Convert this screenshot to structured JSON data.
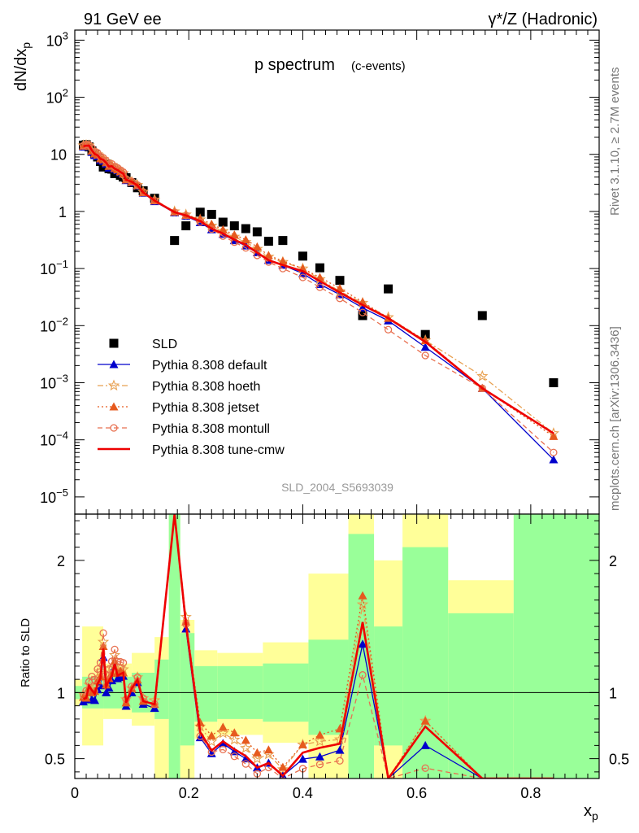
{
  "header": {
    "left": "91 GeV ee",
    "right": "γ*/Z (Hadronic)"
  },
  "side": {
    "rivet": "Rivet 3.1.10, ≥ 2.7M events",
    "mcplots": "mcplots.cern.ch [arXiv:1306.3436]"
  },
  "colors": {
    "sld": "#000000",
    "default": "#0000cc",
    "hoeth": "#e8a050",
    "jetset": "#e65a1e",
    "montull": "#e87050",
    "tunecmw": "#ee0000",
    "band_green": "#99ff99",
    "band_yellow": "#ffff99"
  },
  "chart_data": [
    {
      "type": "scatter",
      "title": "p spectrum",
      "subtitle": "(c-events)",
      "watermark": "SLD_2004_S5693039",
      "ylabel": "dN/dx_p",
      "yscale": "log",
      "ylim": [
        5e-06,
        1500
      ],
      "xlim": [
        0,
        0.92
      ],
      "yticks": [
        {
          "v": 1e-05,
          "b": "10",
          "e": "−5"
        },
        {
          "v": 0.0001,
          "b": "10",
          "e": "−4"
        },
        {
          "v": 0.001,
          "b": "10",
          "e": "−3"
        },
        {
          "v": 0.01,
          "b": "10",
          "e": "−2"
        },
        {
          "v": 0.1,
          "b": "10",
          "e": "−1"
        },
        {
          "v": 1,
          "b": "1",
          "e": ""
        },
        {
          "v": 10,
          "b": "10",
          "e": ""
        },
        {
          "v": 100,
          "b": "10",
          "e": "2"
        },
        {
          "v": 1000,
          "b": "10",
          "e": "3"
        }
      ],
      "legend": {
        "position": "bottom-left"
      },
      "x": [
        0.015,
        0.02,
        0.025,
        0.03,
        0.035,
        0.04,
        0.045,
        0.05,
        0.055,
        0.06,
        0.065,
        0.07,
        0.075,
        0.08,
        0.085,
        0.09,
        0.1,
        0.11,
        0.12,
        0.14,
        0.175,
        0.195,
        0.22,
        0.24,
        0.26,
        0.28,
        0.3,
        0.32,
        0.34,
        0.365,
        0.4,
        0.43,
        0.465,
        0.505,
        0.55,
        0.615,
        0.715,
        0.84
      ],
      "series": [
        {
          "name": "SLD",
          "key": "sld",
          "marker": "square",
          "line": "none",
          "values": [
            14.5,
            14.8,
            13.5,
            11.5,
            10.2,
            9.0,
            7.5,
            6.0,
            6.8,
            5.6,
            5.5,
            4.6,
            4.7,
            4.3,
            4.0,
            3.9,
            3.2,
            2.6,
            2.3,
            1.7,
            0.31,
            0.56,
            0.97,
            0.89,
            0.65,
            0.56,
            0.5,
            0.44,
            0.3,
            0.31,
            0.165,
            0.103,
            0.062,
            0.015,
            0.044,
            0.007,
            0.015,
            0.001
          ]
        },
        {
          "name": "Pythia 8.308 default",
          "key": "default",
          "marker": "triangle",
          "line": "solid",
          "values": [
            13.5,
            14.0,
            13.8,
            10.9,
            9.6,
            9.2,
            7.9,
            7.6,
            6.8,
            5.8,
            6.0,
            5.5,
            5.2,
            4.8,
            4.5,
            3.5,
            3.2,
            2.8,
            2.1,
            1.5,
            0.95,
            0.83,
            0.64,
            0.48,
            0.4,
            0.31,
            0.25,
            0.19,
            0.14,
            0.115,
            0.082,
            0.053,
            0.035,
            0.0205,
            0.0122,
            0.0042,
            0.0008,
            4.5e-05
          ]
        },
        {
          "name": "Pythia 8.308 hoeth",
          "key": "hoeth",
          "marker": "star",
          "line": "dashdot",
          "values": [
            14.3,
            14.5,
            14.3,
            11.8,
            10.6,
            10.0,
            8.7,
            8.3,
            7.4,
            6.4,
            6.5,
            5.9,
            5.5,
            5.1,
            4.7,
            3.7,
            3.3,
            2.9,
            2.2,
            1.6,
            1.0,
            0.88,
            0.72,
            0.56,
            0.45,
            0.36,
            0.29,
            0.22,
            0.16,
            0.13,
            0.1,
            0.065,
            0.04,
            0.025,
            0.014,
            0.0055,
            0.0013,
            0.00013
          ]
        },
        {
          "name": "Pythia 8.308 jetset",
          "key": "jetset",
          "marker": "triangle",
          "line": "dotted",
          "values": [
            14.0,
            14.2,
            14.0,
            11.5,
            10.3,
            9.8,
            8.4,
            8.1,
            7.2,
            6.2,
            6.3,
            5.7,
            5.4,
            5.0,
            4.6,
            3.6,
            3.3,
            2.85,
            2.15,
            1.55,
            0.98,
            0.86,
            0.75,
            0.6,
            0.48,
            0.39,
            0.32,
            0.24,
            0.17,
            0.135,
            0.1,
            0.07,
            0.045,
            0.026,
            0.0135,
            0.0055,
            0.0008,
            0.000115
          ]
        },
        {
          "name": "Pythia 8.308 montull",
          "key": "montull",
          "marker": "circle",
          "line": "dashed",
          "values": [
            14.2,
            15.0,
            14.6,
            12.9,
            11.2,
            10.6,
            9.2,
            8.7,
            7.7,
            6.6,
            6.8,
            6.1,
            5.8,
            5.3,
            4.9,
            3.7,
            3.35,
            2.9,
            2.2,
            1.55,
            0.97,
            0.85,
            0.65,
            0.49,
            0.37,
            0.29,
            0.23,
            0.17,
            0.13,
            0.1,
            0.07,
            0.047,
            0.03,
            0.017,
            0.0085,
            0.003,
            0.0008,
            6e-05
          ]
        },
        {
          "name": "Pythia 8.308 tune-cmw",
          "key": "tunecmw",
          "marker": "none",
          "line": "solid-thick",
          "values": [
            13.8,
            14.2,
            14.2,
            11.7,
            10.1,
            9.6,
            8.3,
            8.0,
            7.1,
            6.1,
            6.2,
            5.6,
            5.3,
            4.9,
            4.6,
            3.6,
            3.3,
            2.85,
            2.15,
            1.55,
            0.97,
            0.85,
            0.68,
            0.5,
            0.41,
            0.32,
            0.26,
            0.19,
            0.14,
            0.115,
            0.09,
            0.06,
            0.038,
            0.023,
            0.0135,
            0.0052,
            0.0008,
            0.00013
          ]
        }
      ]
    },
    {
      "type": "line",
      "ylabel": "Ratio to SLD",
      "xlabel": "x_p",
      "xlim": [
        0,
        0.92
      ],
      "ylim": [
        0.35,
        2.35
      ],
      "yticks": [
        0.5,
        1,
        2
      ],
      "xticks": [
        0,
        0.2,
        0.4,
        0.6,
        0.8
      ],
      "reference": 1,
      "bands": [
        {
          "x0": 0.0,
          "x1": 0.013,
          "g": [
            0.95,
            1.05
          ],
          "y": [
            0.9,
            1.1
          ]
        },
        {
          "x0": 0.013,
          "x1": 0.05,
          "g": [
            0.88,
            1.12
          ],
          "y": [
            0.6,
            1.5
          ]
        },
        {
          "x0": 0.05,
          "x1": 0.1,
          "g": [
            0.88,
            1.12
          ],
          "y": [
            0.8,
            1.22
          ]
        },
        {
          "x0": 0.1,
          "x1": 0.14,
          "g": [
            0.85,
            1.15
          ],
          "y": [
            0.75,
            1.3
          ]
        },
        {
          "x0": 0.14,
          "x1": 0.165,
          "g": [
            0.8,
            1.25
          ],
          "y": [
            0.35,
            1.42
          ]
        },
        {
          "x0": 0.165,
          "x1": 0.185,
          "g": [
            0.35,
            2.35
          ],
          "y": [
            0.35,
            2.35
          ]
        },
        {
          "x0": 0.185,
          "x1": 0.21,
          "g": [
            0.6,
            1.45
          ],
          "y": [
            0.35,
            1.55
          ]
        },
        {
          "x0": 0.21,
          "x1": 0.25,
          "g": [
            0.78,
            1.2
          ],
          "y": [
            0.65,
            1.32
          ]
        },
        {
          "x0": 0.25,
          "x1": 0.33,
          "g": [
            0.8,
            1.2
          ],
          "y": [
            0.68,
            1.3
          ]
        },
        {
          "x0": 0.33,
          "x1": 0.41,
          "g": [
            0.78,
            1.22
          ],
          "y": [
            0.62,
            1.38
          ]
        },
        {
          "x0": 0.41,
          "x1": 0.48,
          "g": [
            0.68,
            1.4
          ],
          "y": [
            0.35,
            1.9
          ]
        },
        {
          "x0": 0.48,
          "x1": 0.525,
          "g": [
            0.35,
            2.2
          ],
          "y": [
            0.35,
            2.35
          ]
        },
        {
          "x0": 0.525,
          "x1": 0.575,
          "g": [
            0.6,
            1.5
          ],
          "y": [
            0.35,
            2.0
          ]
        },
        {
          "x0": 0.575,
          "x1": 0.655,
          "g": [
            0.35,
            2.1
          ],
          "y": [
            0.35,
            2.35
          ]
        },
        {
          "x0": 0.655,
          "x1": 0.77,
          "g": [
            0.35,
            1.6
          ],
          "y": [
            0.35,
            1.85
          ]
        },
        {
          "x0": 0.77,
          "x1": 0.92,
          "g": [
            0.35,
            2.35
          ],
          "y": [
            0.35,
            2.35
          ]
        }
      ]
    }
  ]
}
